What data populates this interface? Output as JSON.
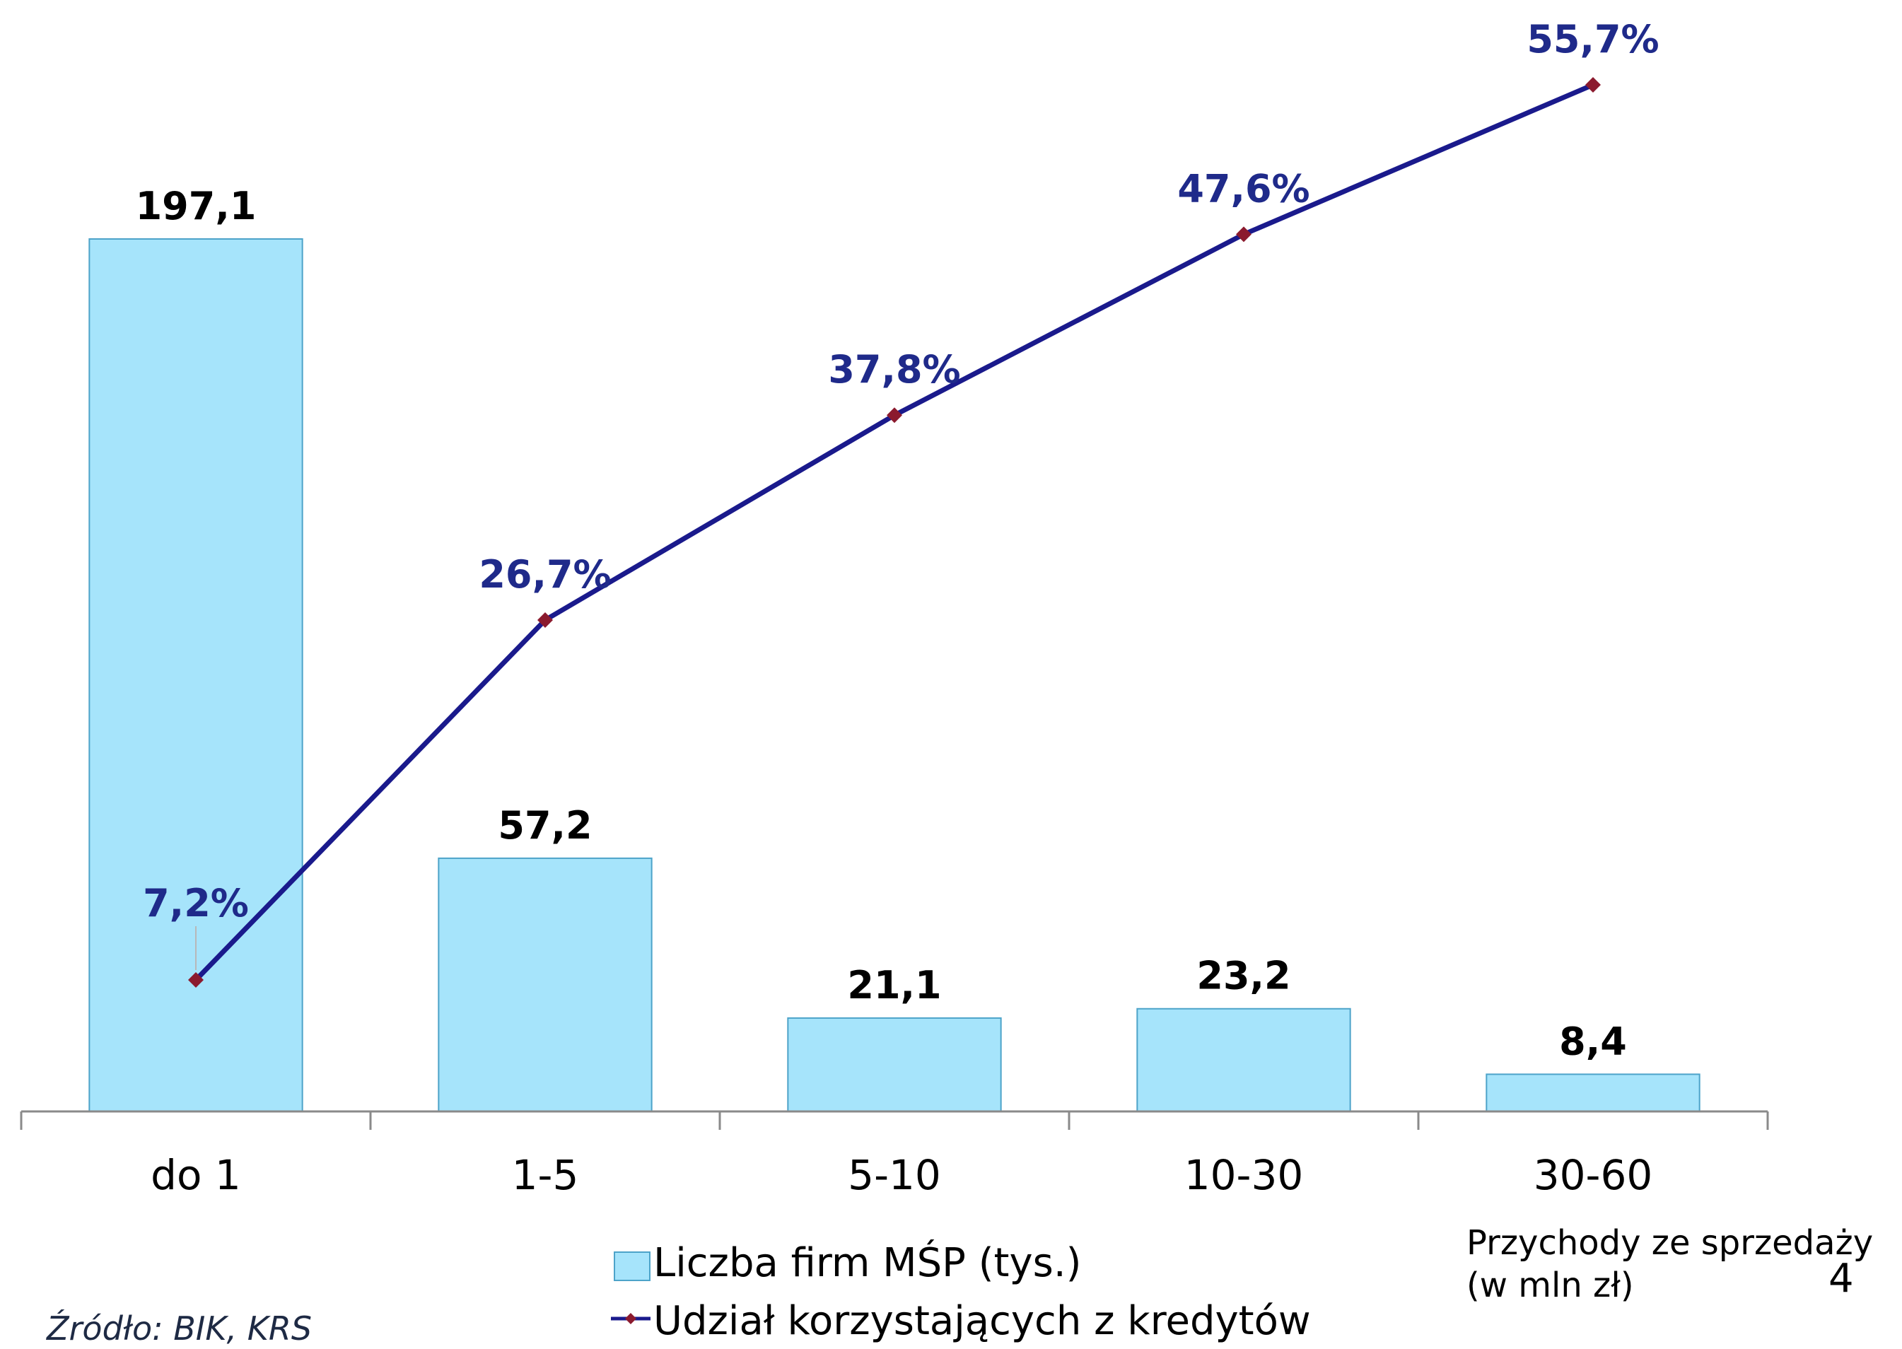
{
  "chart_data": {
    "type": "bar",
    "categories": [
      "do 1",
      "1-5",
      "5-10",
      "10-30",
      "30-60"
    ],
    "series": [
      {
        "name": "Liczba firm MŚP (tys.)",
        "kind": "bar",
        "values": [
          197.1,
          57.2,
          21.1,
          23.2,
          8.4
        ],
        "labels": [
          "197,1",
          "57,2",
          "21,1",
          "23,2",
          "8,4"
        ],
        "color": "#a6e4fb",
        "border": "#4da3c9"
      },
      {
        "name": "Udział korzystających z kredytów",
        "kind": "line",
        "values": [
          7.2,
          26.7,
          37.8,
          47.6,
          55.7
        ],
        "labels": [
          "7,2%",
          "26,7%",
          "37,8%",
          "47,6%",
          "55,7%"
        ],
        "color": "#1a1a8c",
        "marker": "#8b1a2e"
      }
    ],
    "xlabel": "Przychody ze sprzedaży (w mln zł)",
    "xlabel_lines": [
      "Przychody ze sprzedaży",
      "(w mln zł)"
    ],
    "ylabel": "",
    "grid": false,
    "legend_position": "bottom"
  },
  "source": "Źródło: BIK, KRS",
  "page_number": "4"
}
